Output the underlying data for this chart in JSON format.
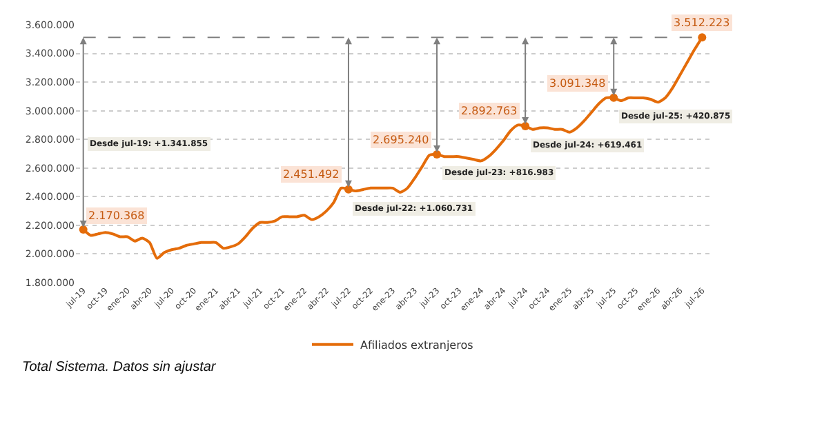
{
  "chart_data": {
    "type": "line",
    "categories": [
      "jul-19",
      null,
      null,
      "oct-19",
      null,
      null,
      "ene-20",
      null,
      null,
      "abr-20",
      null,
      null,
      "jul-20",
      null,
      null,
      "oct-20",
      null,
      null,
      "ene-21",
      null,
      null,
      "abr-21",
      null,
      null,
      "jul-21",
      null,
      null,
      "oct-21",
      null,
      null,
      "ene-22",
      null,
      null,
      "abr-22",
      null,
      null,
      "jul-22",
      null,
      null,
      "oct-22",
      null,
      null,
      "ene-23",
      null,
      null,
      "abr-23",
      null,
      null,
      "jul-23",
      null,
      null,
      "oct-23",
      null,
      null,
      "ene-24",
      null,
      null,
      "abr-24",
      null,
      null,
      "jul-24",
      null,
      null,
      "oct-24",
      null,
      null,
      "ene-25",
      null,
      null,
      "abr-25",
      null,
      null,
      "jul-25",
      null,
      null,
      "oct-25",
      null,
      null,
      "ene-26",
      null,
      null,
      "abr-26",
      null,
      null,
      "jul-26"
    ],
    "series": [
      {
        "name": "Afiliados extranjeros",
        "color": "#e46c0a",
        "values": [
          2170368,
          2130000,
          2140000,
          2150000,
          2140000,
          2120000,
          2120000,
          2090000,
          2110000,
          2080000,
          1970000,
          2010000,
          2030000,
          2040000,
          2060000,
          2070000,
          2080000,
          2080000,
          2080000,
          2040000,
          2050000,
          2070000,
          2120000,
          2180000,
          2220000,
          2220000,
          2230000,
          2260000,
          2260000,
          2260000,
          2270000,
          2240000,
          2260000,
          2300000,
          2360000,
          2460000,
          2451492,
          2440000,
          2450000,
          2460000,
          2460000,
          2460000,
          2460000,
          2430000,
          2460000,
          2530000,
          2610000,
          2690000,
          2695240,
          2680000,
          2680000,
          2680000,
          2670000,
          2660000,
          2650000,
          2680000,
          2730000,
          2790000,
          2860000,
          2900000,
          2892763,
          2870000,
          2880000,
          2880000,
          2870000,
          2870000,
          2850000,
          2880000,
          2930000,
          2990000,
          3050000,
          3090000,
          3091348,
          3070000,
          3090000,
          3090000,
          3090000,
          3080000,
          3060000,
          3090000,
          3160000,
          3250000,
          3340000,
          3430000,
          3512223
        ],
        "value_labels": [
          "2.170.368",
          null,
          null,
          null,
          null,
          null,
          null,
          null,
          null,
          null,
          null,
          null,
          null,
          null,
          null,
          null,
          null,
          null,
          null,
          null,
          null,
          null,
          null,
          null,
          null,
          null,
          null,
          null,
          null,
          null,
          null,
          null,
          null,
          null,
          null,
          null,
          "2.451.492",
          null,
          null,
          null,
          null,
          null,
          null,
          null,
          null,
          null,
          null,
          null,
          "2.695.240",
          null,
          null,
          null,
          null,
          null,
          null,
          null,
          null,
          null,
          null,
          null,
          "2.892.763",
          null,
          null,
          null,
          null,
          null,
          null,
          null,
          null,
          null,
          null,
          null,
          "3.091.348",
          null,
          null,
          null,
          null,
          null,
          null,
          null,
          null,
          null,
          null,
          null,
          "3.512.223"
        ]
      }
    ],
    "ylim": [
      1800000,
      3600000
    ],
    "yticks": [
      {
        "value": 1800000,
        "label": "1.800.000"
      },
      {
        "value": 2000000,
        "label": "2.000.000"
      },
      {
        "value": 2200000,
        "label": "2.200.000"
      },
      {
        "value": 2400000,
        "label": "2.400.000"
      },
      {
        "value": 2600000,
        "label": "2.600.000"
      },
      {
        "value": 2800000,
        "label": "2.800.000"
      },
      {
        "value": 3000000,
        "label": "3.000.000"
      },
      {
        "value": 3200000,
        "label": "3.200.000"
      },
      {
        "value": 3400000,
        "label": "3.400.000"
      },
      {
        "value": 3600000,
        "label": "3.600.000"
      }
    ],
    "grid": "y",
    "legend": "bottom",
    "line_style": "solid",
    "ref_lines": [
      {
        "axis": "y",
        "value": 3512223,
        "color": "#7f7f7f",
        "line_style": "dashed"
      }
    ],
    "annotations": [
      "Desde jul-19: +1.341.855",
      "Desde jul-22: +1.060.731",
      "Desde jul-23: +816.983",
      "Desde jul-24: +619.461",
      "Desde jul-25: +420.875",
      "Total Sistema. Datos sin ajustar"
    ]
  }
}
